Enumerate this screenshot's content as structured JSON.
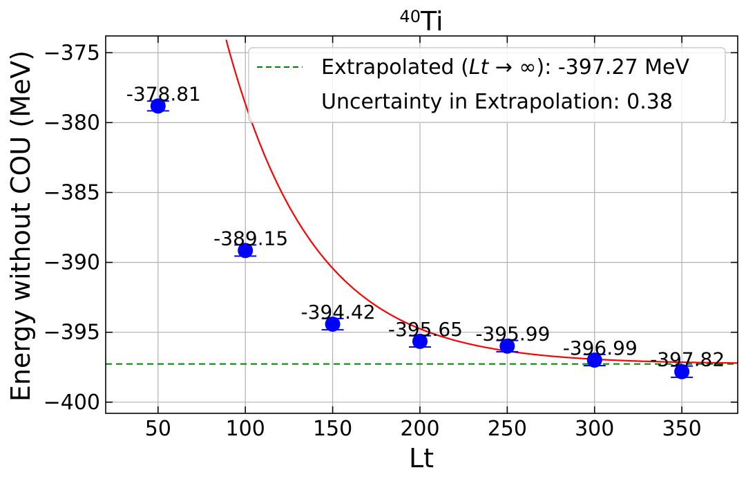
{
  "chart_data": {
    "type": "scatter",
    "title_sup": "40",
    "title_main": "Ti",
    "xlabel": "Lt",
    "ylabel": "Energy without COU (MeV)",
    "xlim": [
      20,
      382
    ],
    "ylim": [
      -400.8,
      -373.8
    ],
    "xticks": [
      50,
      100,
      150,
      200,
      250,
      300,
      350
    ],
    "yticks": [
      -375,
      -380,
      -385,
      -390,
      -395,
      -400
    ],
    "ytick_labels": [
      "−375",
      "−380",
      "−385",
      "−390",
      "−395",
      "−400"
    ],
    "grid": true,
    "legend_position": "top-right",
    "series": [
      {
        "type": "points-with-errorbars",
        "color": "#0000ff",
        "x": [
          50,
          100,
          150,
          200,
          250,
          300,
          350
        ],
        "y": [
          -378.81,
          -389.15,
          -394.42,
          -395.65,
          -395.99,
          -396.99,
          -397.82
        ],
        "yerr": [
          0.35,
          0.4,
          0.4,
          0.4,
          0.4,
          0.4,
          0.4
        ],
        "labels": [
          "-378.81",
          "-389.15",
          "-394.42",
          "-395.65",
          "-395.99",
          "-396.99",
          "-397.82"
        ]
      },
      {
        "type": "fit-curve",
        "color": "#ff0000",
        "model": "exponential",
        "asymptote": -397.27,
        "amplitude": 50.6,
        "decay": 0.02
      },
      {
        "type": "hline",
        "color": "#008000",
        "y": -397.27
      }
    ],
    "legend": {
      "line1_prefix": "Extrapolated (",
      "line1_italic": "Lt",
      "line1_arrow": " → ∞): -397.27 MeV",
      "line2": "Uncertainty in Extrapolation: 0.38"
    }
  }
}
